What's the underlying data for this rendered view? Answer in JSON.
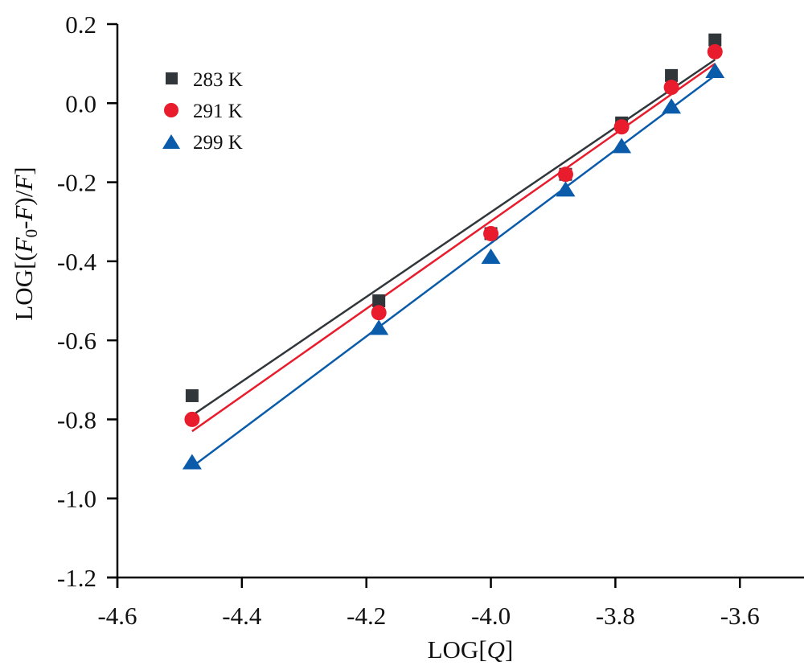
{
  "chart_data": {
    "type": "scatter",
    "title": "",
    "xlabel": "LOG[Q]",
    "ylabel": "LOG[(F0-F)/F]",
    "xlabel_parts": {
      "prefix": "LOG[",
      "italic": "Q",
      "suffix": "]"
    },
    "ylabel_parts": {
      "prefix": "LOG[(",
      "italic1": "F",
      "sub": "0",
      "mid": "-",
      "italic2": "F",
      "mid2": ")/",
      "italic3": "F",
      "suffix": "]"
    },
    "xlim": [
      -4.6,
      -3.497
    ],
    "ylim": [
      -1.2,
      0.2
    ],
    "xticks": [
      -4.6,
      -4.4,
      -4.2,
      -4.0,
      -3.8,
      -3.6
    ],
    "xtick_labels": [
      "-4.6",
      "-4.4",
      "-4.2",
      "-4.0",
      "-3.8",
      "-3.6"
    ],
    "yticks": [
      0.2,
      0.0,
      -0.2,
      -0.4,
      -0.6,
      -0.8,
      -1.0,
      -1.2
    ],
    "ytick_labels": [
      "0.2",
      "0.0",
      "-0.2",
      "-0.4",
      "-0.6",
      "-0.8",
      "-1.0",
      "-1.2"
    ],
    "grid": false,
    "legend_position": "top-left",
    "x": [
      -4.48,
      -4.18,
      -4.0,
      -3.88,
      -3.79,
      -3.71,
      -3.64
    ],
    "series": [
      {
        "name": "283 K",
        "marker": "square",
        "color": "#30363a",
        "values": [
          -0.74,
          -0.5,
          -0.33,
          -0.18,
          -0.05,
          0.07,
          0.16
        ],
        "fit_line": {
          "x": [
            -4.48,
            -3.64
          ],
          "y": [
            -0.79,
            0.11
          ]
        }
      },
      {
        "name": "291 K",
        "marker": "circle",
        "color": "#e81c2c",
        "values": [
          -0.8,
          -0.53,
          -0.33,
          -0.18,
          -0.06,
          0.04,
          0.13
        ],
        "fit_line": {
          "x": [
            -4.48,
            -3.64
          ],
          "y": [
            -0.83,
            0.1
          ]
        }
      },
      {
        "name": "299 K",
        "marker": "triangle",
        "color": "#0a5cab",
        "values": [
          -0.91,
          -0.57,
          -0.39,
          -0.22,
          -0.11,
          -0.01,
          0.08
        ],
        "fit_line": {
          "x": [
            -4.48,
            -3.64
          ],
          "y": [
            -0.92,
            0.07
          ]
        }
      }
    ]
  }
}
